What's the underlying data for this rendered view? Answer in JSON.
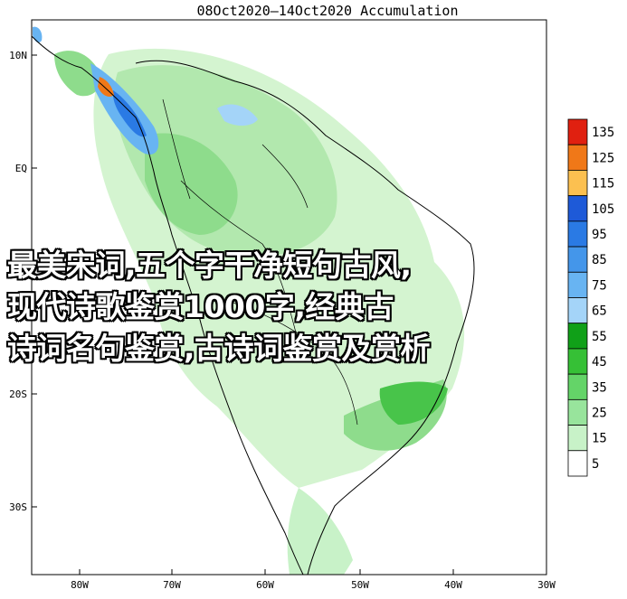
{
  "map": {
    "title": "08Oct2020—14Oct2020 Accumulation",
    "lat_labels": [
      "10N",
      "EQ",
      "20S",
      "30S"
    ],
    "lon_labels": [
      "80W",
      "70W",
      "60W",
      "50W",
      "40W",
      "30W"
    ],
    "legend": {
      "levels": [
        "135",
        "125",
        "115",
        "105",
        "95",
        "85",
        "75",
        "65",
        "55",
        "45",
        "35",
        "25",
        "15",
        "5"
      ],
      "colors": [
        "#e02010",
        "#f07818",
        "#fcc050",
        "#1e5ad8",
        "#2a7ae4",
        "#4496ea",
        "#68b4f2",
        "#a4d4f8",
        "#10a018",
        "#36c036",
        "#64d468",
        "#98e49c",
        "#c8f2c8",
        "#ffffff"
      ]
    }
  },
  "watermark": {
    "line1": "最美宋词,五个字干净短句古风,",
    "line2": "现代诗歌鉴赏1000字,经典古",
    "line3": "诗词名句鉴赏,古诗词鉴赏及赏析"
  }
}
